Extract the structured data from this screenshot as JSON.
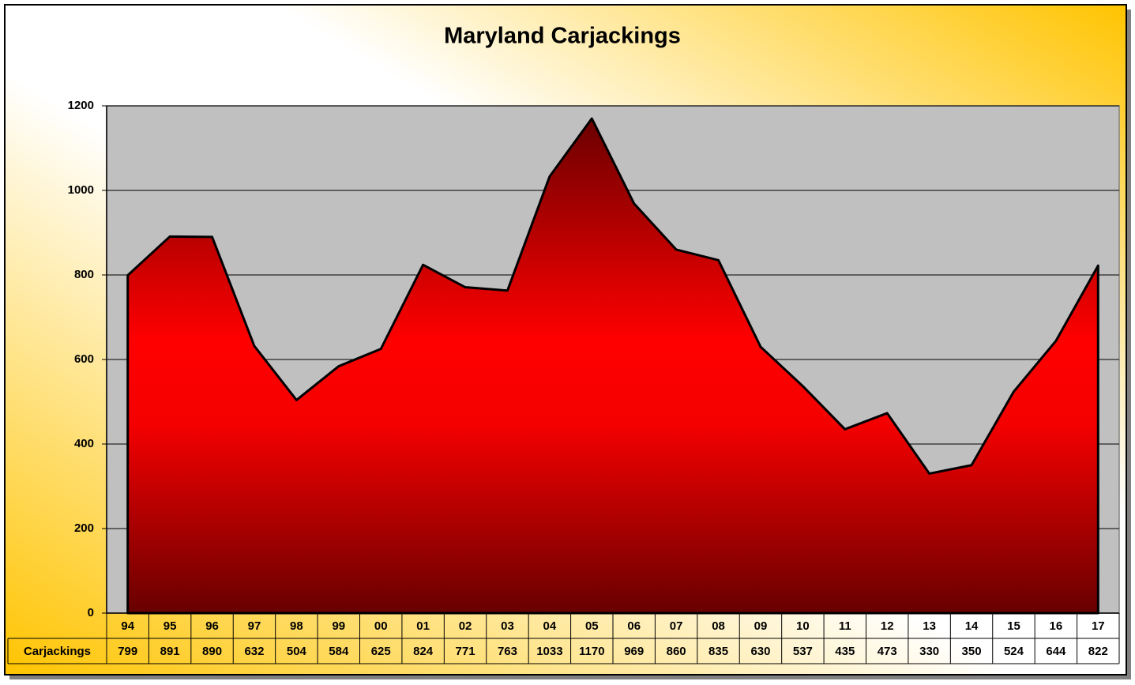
{
  "chart_data": {
    "type": "area",
    "title": "Maryland Carjackings",
    "categories": [
      "94",
      "95",
      "96",
      "97",
      "98",
      "99",
      "00",
      "01",
      "02",
      "03",
      "04",
      "05",
      "06",
      "07",
      "08",
      "09",
      "10",
      "11",
      "12",
      "13",
      "14",
      "15",
      "16",
      "17"
    ],
    "series": [
      {
        "name": "Carjackings",
        "color": "#ff0000",
        "values": [
          799,
          891,
          890,
          632,
          504,
          584,
          625,
          824,
          771,
          763,
          1033,
          1170,
          969,
          860,
          835,
          630,
          537,
          435,
          473,
          330,
          350,
          524,
          644,
          822
        ]
      }
    ],
    "ylim": [
      0,
      1200
    ],
    "yticks": [
      0,
      200,
      400,
      600,
      800,
      1000,
      1200
    ],
    "grid": true,
    "data_table": true
  }
}
